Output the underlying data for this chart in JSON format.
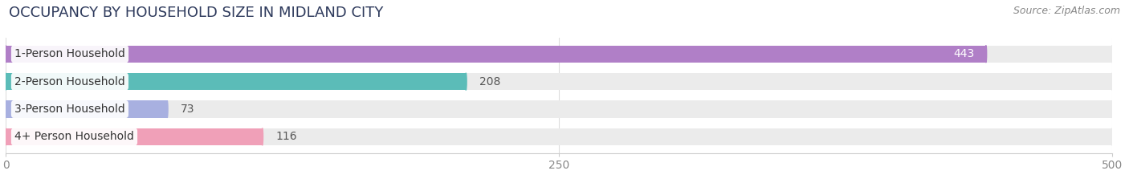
{
  "title": "OCCUPANCY BY HOUSEHOLD SIZE IN MIDLAND CITY",
  "source": "Source: ZipAtlas.com",
  "categories": [
    "1-Person Household",
    "2-Person Household",
    "3-Person Household",
    "4+ Person Household"
  ],
  "values": [
    443,
    208,
    73,
    116
  ],
  "bar_colors": [
    "#b07fc7",
    "#5bbcb8",
    "#a8b0e0",
    "#f0a0b8"
  ],
  "bar_bg_color": "#ebebeb",
  "xlim": [
    0,
    500
  ],
  "xticks": [
    0,
    250,
    500
  ],
  "title_fontsize": 13,
  "source_fontsize": 9,
  "label_fontsize": 10,
  "value_fontsize": 10,
  "figsize": [
    14.06,
    2.33
  ],
  "dpi": 100,
  "title_color": "#2e3a5c",
  "source_color": "#888888",
  "label_text_color": "#333333",
  "value_inside_color": "white",
  "value_outside_color": "#555555"
}
